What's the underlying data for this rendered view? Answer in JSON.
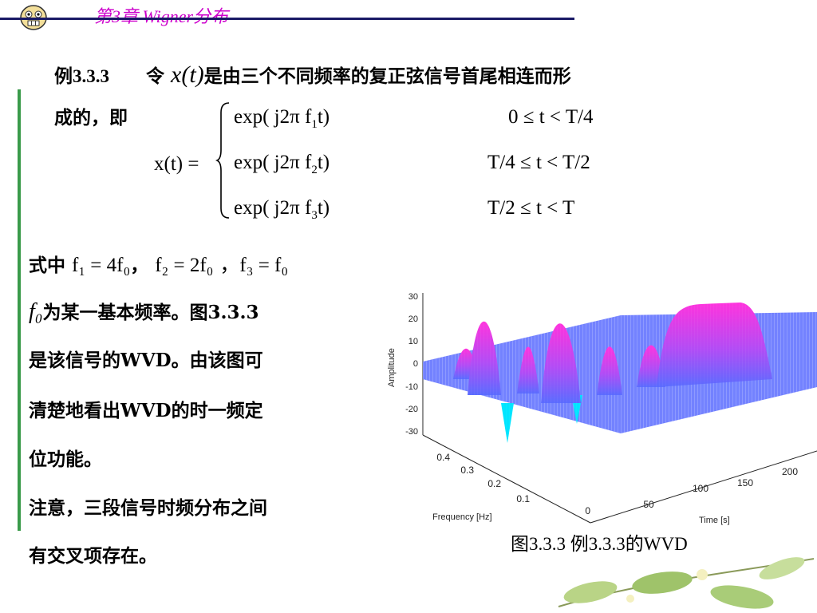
{
  "header": {
    "chapter_title": "第3章  Wigner分布",
    "icon": "cartoon-face-icon"
  },
  "example": {
    "label": "例3.3.3",
    "intro_prefix": "令",
    "signal_symbol": "x(t)",
    "intro_suffix": "是由三个不同频率的复正弦信号首尾相连而形",
    "line2": "成的，即"
  },
  "equation": {
    "lhs": "x(t) =",
    "cases": [
      {
        "expr": "exp( j2π f",
        "sub": "1",
        "tail": "t)",
        "cond": "0 ≤ t < T/4"
      },
      {
        "expr": "exp( j2π f",
        "sub": "2",
        "tail": "t)",
        "cond": "T/4 ≤ t < T/2"
      },
      {
        "expr": "exp( j2π f",
        "sub": "3",
        "tail": "t)",
        "cond": "T/2 ≤ t < T"
      }
    ]
  },
  "body": {
    "line1_prefix": "式中",
    "f1_def": "f₁ = 4f₀",
    "sep": "，",
    "f2_def": "f₂ = 2f₀",
    "f3_def": "，f₃ = f₀",
    "f0_symbol": "f₀",
    "line2_rest": "为某一基本频率。图3.3.3",
    "line3": "是该信号的WVD。由该图可",
    "line4": "清楚地看出WVD的时一频定",
    "line5": "位功能。",
    "line6": "注意，三段信号时频分布之间",
    "line7": "有交叉项存在。"
  },
  "figure": {
    "caption": "图3.3.3    例3.3.3的WVD",
    "z_label": "Amplitude",
    "x_label": "Time [s]",
    "y_label": "Frequency [Hz]",
    "z_ticks": [
      "30",
      "20",
      "10",
      "0",
      "-10",
      "-20",
      "-30"
    ],
    "x_ticks": [
      "0",
      "50",
      "100",
      "150",
      "200"
    ],
    "y_ticks": [
      "0",
      "0.1",
      "0.2",
      "0.3",
      "0.4"
    ],
    "surface_top_color": "#ff33dd",
    "surface_base_color": "#5a6cff",
    "negative_color": "#00e5ff"
  },
  "colors": {
    "title": "#cc00cc",
    "rule": "#1a1a66",
    "left_bar": "#3a9a4a"
  }
}
